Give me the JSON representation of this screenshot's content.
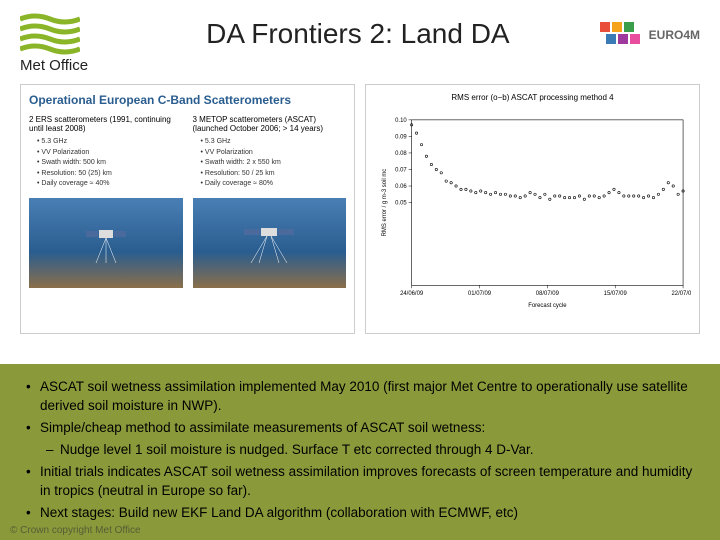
{
  "header": {
    "title": "DA Frontiers 2: Land DA",
    "logo_left_text": "Met Office",
    "logo_right_text": "EURO4M",
    "wave_color": "#8bb528",
    "square_colors": [
      "#e94e3a",
      "#f4a31a",
      "#3a9e4a",
      "#3a7ab5",
      "#9e3a9e",
      "#e94e9e"
    ]
  },
  "panel_left": {
    "title": "Operational European C-Band Scatterometers",
    "col1": {
      "title": "2 ERS scatterometers\n(1991, continuing until least 2008)",
      "items": [
        "5.3 GHz",
        "VV Polarization",
        "Swath width: 500 km",
        "Resolution: 50 (25) km",
        "Daily coverage ≈ 40%"
      ]
    },
    "col2": {
      "title": "3 METOP scatterometers (ASCAT)\n(launched October 2006; > 14 years)",
      "items": [
        "5.3 GHz",
        "VV Polarization",
        "Swath width: 2 x 550 km",
        "Resolution: 50 / 25 km",
        "Daily coverage ≈ 80%"
      ]
    }
  },
  "chart": {
    "title": "RMS error (o−b) ASCAT processing method 4",
    "ylabel": "RMS error / g m-3 soil mc",
    "xlabel": "Forecast cycle",
    "ylim": [
      0.0,
      0.1
    ],
    "yticks": [
      "0.00",
      "0.05",
      "0.06",
      "0.07",
      "0.08",
      "0.09",
      "0.10"
    ],
    "xticks": [
      "24/06/09",
      "01/07/09",
      "08/07/09",
      "15/07/09",
      "22/07/09"
    ],
    "point_color": "#000000",
    "background": "#ffffff",
    "frame_color": "#000000",
    "points": [
      [
        0,
        0.097
      ],
      [
        1,
        0.092
      ],
      [
        2,
        0.085
      ],
      [
        3,
        0.078
      ],
      [
        4,
        0.073
      ],
      [
        5,
        0.07
      ],
      [
        6,
        0.068
      ],
      [
        7,
        0.063
      ],
      [
        8,
        0.062
      ],
      [
        9,
        0.06
      ],
      [
        10,
        0.058
      ],
      [
        11,
        0.058
      ],
      [
        12,
        0.057
      ],
      [
        13,
        0.056
      ],
      [
        14,
        0.057
      ],
      [
        15,
        0.056
      ],
      [
        16,
        0.055
      ],
      [
        17,
        0.056
      ],
      [
        18,
        0.055
      ],
      [
        19,
        0.055
      ],
      [
        20,
        0.054
      ],
      [
        21,
        0.054
      ],
      [
        22,
        0.053
      ],
      [
        23,
        0.054
      ],
      [
        24,
        0.056
      ],
      [
        25,
        0.055
      ],
      [
        26,
        0.053
      ],
      [
        27,
        0.055
      ],
      [
        28,
        0.052
      ],
      [
        29,
        0.054
      ],
      [
        30,
        0.054
      ],
      [
        31,
        0.053
      ],
      [
        32,
        0.053
      ],
      [
        33,
        0.053
      ],
      [
        34,
        0.054
      ],
      [
        35,
        0.052
      ],
      [
        36,
        0.054
      ],
      [
        37,
        0.054
      ],
      [
        38,
        0.053
      ],
      [
        39,
        0.054
      ],
      [
        40,
        0.056
      ],
      [
        41,
        0.058
      ],
      [
        42,
        0.056
      ],
      [
        43,
        0.054
      ],
      [
        44,
        0.054
      ],
      [
        45,
        0.054
      ],
      [
        46,
        0.054
      ],
      [
        47,
        0.053
      ],
      [
        48,
        0.054
      ],
      [
        49,
        0.053
      ],
      [
        50,
        0.055
      ],
      [
        51,
        0.058
      ],
      [
        52,
        0.062
      ],
      [
        53,
        0.06
      ],
      [
        54,
        0.055
      ],
      [
        55,
        0.057
      ]
    ]
  },
  "bullets": {
    "b1": "ASCAT soil wetness assimilation implemented May 2010 (first major Met Centre to operationally use satellite derived soil moisture in NWP).",
    "b2": "Simple/cheap method to assimilate measurements of ASCAT soil wetness:",
    "b2a": "Nudge level 1 soil moisture is nudged. Surface T etc corrected through 4 D-Var.",
    "b3": "Initial trials indicates ASCAT soil wetness assimilation improves forecasts of screen temperature and humidity in tropics (neutral in Europe so far).",
    "b4": "Next stages: Build new EKF Land DA algorithm (collaboration with ECMWF, etc)"
  },
  "footer": "© Crown copyright Met Office"
}
